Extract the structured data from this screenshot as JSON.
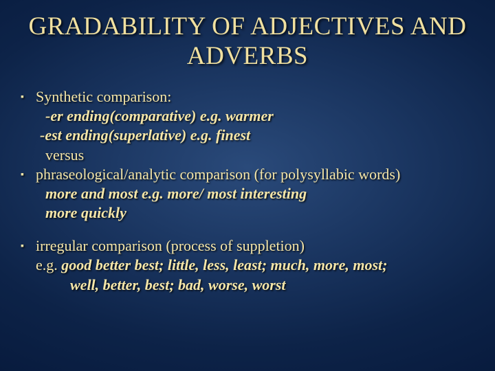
{
  "slide": {
    "background_gradient": {
      "center_color": "#2a4a7a",
      "mid_color": "#1a3560",
      "outer_color": "#0d2348",
      "edge_color": "#06183a"
    },
    "text_color": "#f5e6a8",
    "title_fontsize": 37,
    "body_fontsize": 22,
    "title": "GRADABILITY OF ADJECTIVES AND ADVERBS",
    "block1": {
      "line1": "Synthetic comparison:",
      "line2": "-er ending(comparative) e.g. warmer",
      "line3": "-est ending(superlative)  e.g. finest",
      "line4": "versus",
      "line5a": "phraseological/analytic comparison",
      "line5b": "  (for polysyllabic words)",
      "line6": "more and most  e.g. more/ most  interesting",
      "line7": "more quickly"
    },
    "block2": {
      "line1": "irregular comparison (process of suppletion)",
      "line2a": "e.g. ",
      "line2b": "good better best;  little, less, least;  much, more, most;",
      "line3": "well, better, best;  bad, worse, worst"
    }
  }
}
